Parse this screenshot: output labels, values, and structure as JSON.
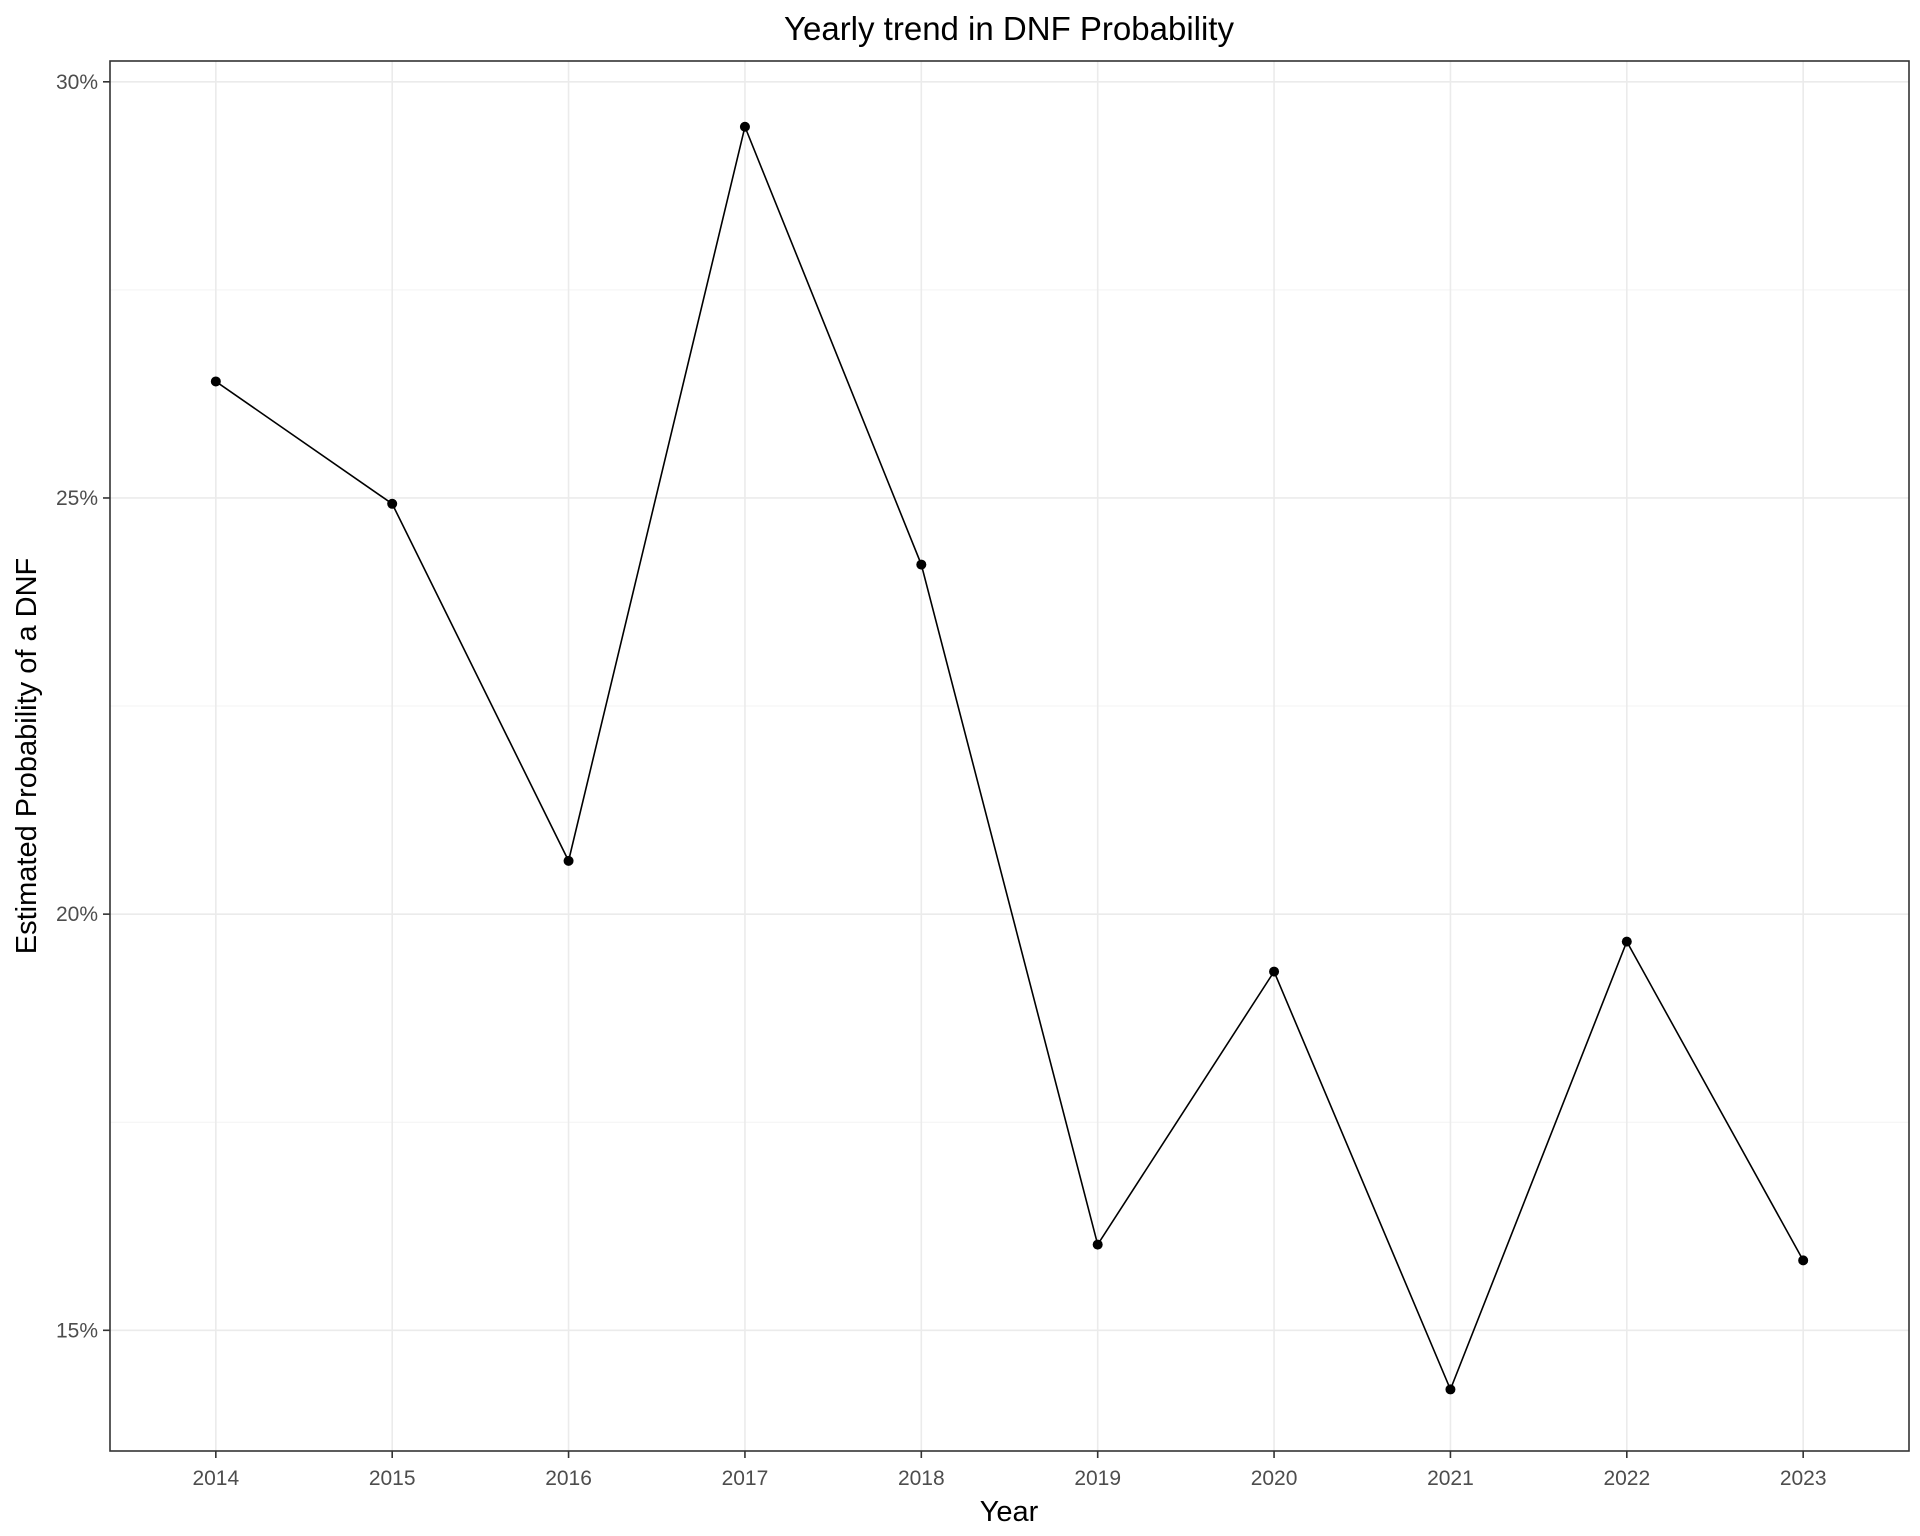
{
  "chart_data": {
    "type": "line",
    "title": "Yearly trend in DNF Probability",
    "xlabel": "Year",
    "ylabel": "Estimated Probability of a DNF",
    "x": [
      "2014",
      "2015",
      "2016",
      "2017",
      "2018",
      "2019",
      "2020",
      "2021",
      "2022",
      "2023"
    ],
    "series": [
      {
        "values": [
          26.4,
          24.93,
          20.64,
          29.46,
          24.2,
          16.03,
          19.31,
          14.29,
          19.67,
          15.84
        ]
      }
    ],
    "yticks": [
      {
        "value": 15,
        "label": "15%"
      },
      {
        "value": 20,
        "label": "20%"
      },
      {
        "value": 25,
        "label": "25%"
      },
      {
        "value": 30,
        "label": "30%"
      }
    ],
    "y_minor_ticks": [
      17.5,
      22.5,
      27.5
    ],
    "ylim": [
      13.55,
      30.25
    ],
    "grid": true,
    "legend": "none",
    "colors": {
      "line": "#000000",
      "point": "#000000",
      "grid": "#ebebeb",
      "text": "#4d4d4d"
    }
  }
}
